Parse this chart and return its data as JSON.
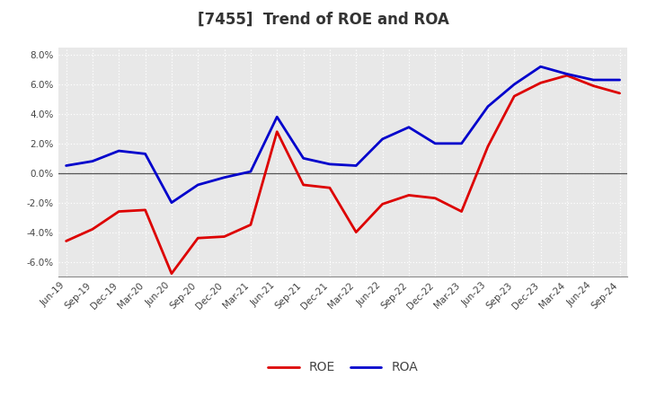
{
  "title": "[7455]  Trend of ROE and ROA",
  "x_labels": [
    "Jun-19",
    "Sep-19",
    "Dec-19",
    "Mar-20",
    "Jun-20",
    "Sep-20",
    "Dec-20",
    "Mar-21",
    "Jun-21",
    "Sep-21",
    "Dec-21",
    "Mar-22",
    "Jun-22",
    "Sep-22",
    "Dec-22",
    "Mar-23",
    "Jun-23",
    "Sep-23",
    "Dec-23",
    "Mar-24",
    "Jun-24",
    "Sep-24"
  ],
  "roe": [
    -4.6,
    -3.8,
    -2.6,
    -2.5,
    -6.8,
    -4.4,
    -4.3,
    -3.5,
    2.8,
    -0.8,
    -1.0,
    -4.0,
    -2.1,
    -1.5,
    -1.7,
    -2.6,
    1.8,
    5.2,
    6.1,
    6.6,
    5.9,
    5.4
  ],
  "roa": [
    0.5,
    0.8,
    1.5,
    1.3,
    -2.0,
    -0.8,
    -0.3,
    0.1,
    3.8,
    1.0,
    0.6,
    0.5,
    2.3,
    3.1,
    2.0,
    2.0,
    4.5,
    6.0,
    7.2,
    6.7,
    6.3,
    6.3
  ],
  "roe_color": "#dd0000",
  "roa_color": "#0000cc",
  "ylim": [
    -7.0,
    8.5
  ],
  "yticks": [
    -6.0,
    -4.0,
    -2.0,
    0.0,
    2.0,
    4.0,
    6.0,
    8.0
  ],
  "plot_bg_color": "#e8e8e8",
  "fig_bg_color": "#ffffff",
  "grid_color": "#ffffff",
  "title_fontsize": 12,
  "title_color": "#333333",
  "line_width": 2.0,
  "tick_label_color": "#444444",
  "tick_fontsize": 7.5
}
